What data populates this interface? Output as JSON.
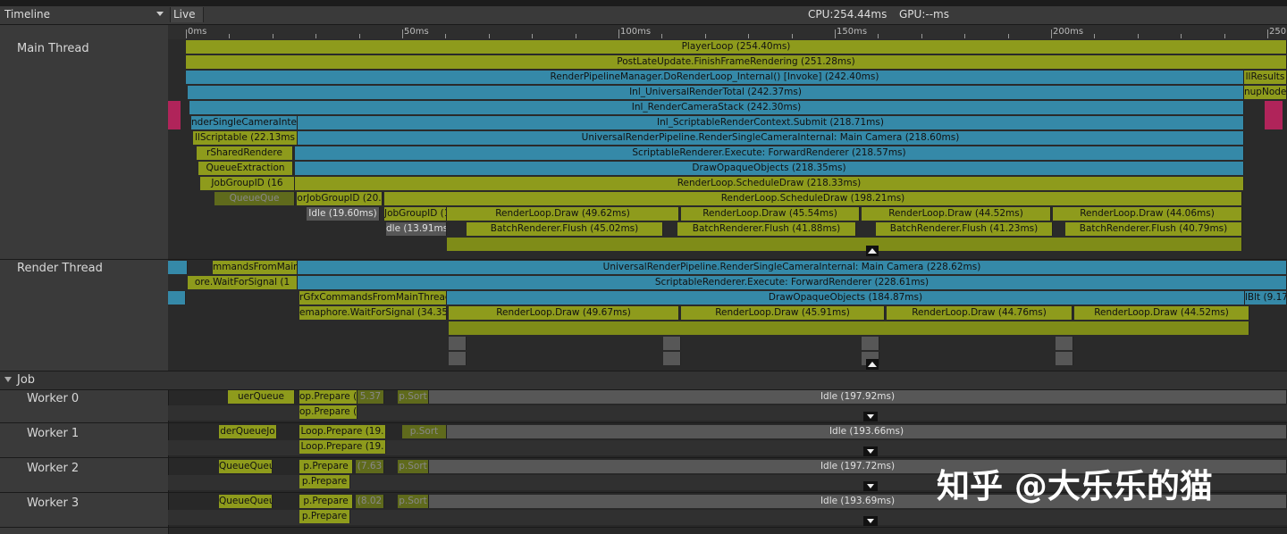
{
  "header": {
    "title": "Timeline",
    "mode": "Live",
    "cpu": "CPU:254.44ms",
    "gpu": "GPU:--ms"
  },
  "ruler": [
    "0ms",
    "50ms",
    "100ms",
    "150ms",
    "200ms",
    "250"
  ],
  "main_thread": {
    "label": "Main Thread",
    "rows": [
      [
        "PlayerLoop (254.40ms)"
      ],
      [
        "PostLateUpdate.FinishFrameRendering (251.28ms)"
      ],
      [
        "RenderPipelineManager.DoRenderLoop_Internal() [Invoke] (242.40ms)",
        "llResults"
      ],
      [
        "Inl_UniversalRenderTotal (242.37ms)",
        "nupNode"
      ],
      [
        "Inl_RenderCameraStack (242.30ms)"
      ],
      [
        "nderSingleCameraInte",
        "Inl_ScriptableRenderContext.Submit (218.71ms)"
      ],
      [
        "llScriptable (22.13ms",
        "UniversalRenderPipeline.RenderSingleCameraInternal: Main Camera (218.60ms)"
      ],
      [
        "rSharedRendere",
        "ScriptableRenderer.Execute: ForwardRenderer (218.57ms)"
      ],
      [
        "QueueExtraction",
        "DrawOpaqueObjects (218.35ms)"
      ],
      [
        "JobGroupID (16",
        "RenderLoop.ScheduleDraw (218.33ms)"
      ],
      [
        "QueueQue",
        "orJobGroupID (20.",
        "RenderLoop.ScheduleDraw (198.21ms)"
      ],
      [
        "Idle (19.60ms)",
        "JobGroupID (1",
        "RenderLoop.Draw (49.62ms)",
        "RenderLoop.Draw (45.54ms)",
        "RenderLoop.Draw (44.52ms)",
        "RenderLoop.Draw (44.06ms)"
      ],
      [
        "dle (13.91ms",
        "BatchRenderer.Flush (45.02ms)",
        "BatchRenderer.Flush (41.88ms)",
        "BatchRenderer.Flush (41.23ms)",
        "BatchRenderer.Flush (40.79ms)"
      ]
    ]
  },
  "render_thread": {
    "label": "Render Thread",
    "rows": [
      [
        "mmandsFromMain",
        "UniversalRenderPipeline.RenderSingleCameraInternal: Main Camera (228.62ms)"
      ],
      [
        "ore.WaitForSignal (1",
        "ScriptableRenderer.Execute: ForwardRenderer (228.61ms)"
      ],
      [
        "rGfxCommandsFromMainThread",
        "DrawOpaqueObjects (184.87ms)",
        "lBlt (9.17"
      ],
      [
        "emaphore.WaitForSignal (34.35m",
        "RenderLoop.Draw (49.67ms)",
        "RenderLoop.Draw (45.91ms)",
        "RenderLoop.Draw (44.76ms)",
        "RenderLoop.Draw (44.52ms)"
      ]
    ]
  },
  "job": {
    "label": "Job",
    "workers": [
      {
        "label": "Worker 0",
        "rows": [
          [
            "uerQueue",
            "op.Prepare (",
            "5.37",
            "p.Sort",
            "Idle (197.92ms)"
          ],
          [
            "op.Prepare ("
          ]
        ]
      },
      {
        "label": "Worker 1",
        "rows": [
          [
            "derQueueJo",
            "Loop.Prepare (19.",
            "p.Sort",
            "Idle (193.66ms)"
          ],
          [
            "Loop.Prepare (19."
          ]
        ]
      },
      {
        "label": "Worker 2",
        "rows": [
          [
            "QueueQueu",
            "p.Prepare",
            "(7.63",
            "p.Sort",
            "Idle (197.72ms)"
          ],
          [
            "p.Prepare"
          ]
        ]
      },
      {
        "label": "Worker 3",
        "rows": [
          [
            "QueueQueu",
            "p.Prepare",
            "(8.02",
            "p.Sort",
            "Idle (193.69ms)"
          ],
          [
            "p.Prepare"
          ]
        ]
      }
    ]
  },
  "watermark": "知乎 @大乐乐的猫"
}
